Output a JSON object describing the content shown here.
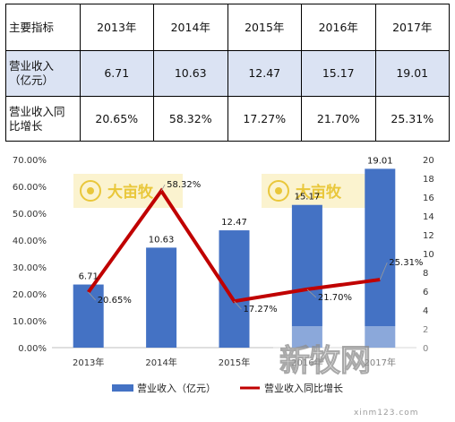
{
  "table": {
    "headers": [
      "主要指标",
      "2013年",
      "2014年",
      "2015年",
      "2016年",
      "2017年"
    ],
    "rows": [
      {
        "label": "营业收入\n（亿元）",
        "cells": [
          "6.71",
          "10.63",
          "12.47",
          "15.17",
          "19.01"
        ]
      },
      {
        "label": "营业收入同\n比增长",
        "cells": [
          "20.65%",
          "58.32%",
          "17.27%",
          "21.70%",
          "25.31%"
        ]
      }
    ]
  },
  "chart_data": {
    "type": "bar",
    "categories": [
      "2013年",
      "2014年",
      "2015年",
      "2016年",
      "2017年"
    ],
    "series": [
      {
        "name": "营业收入（亿元）",
        "type": "bar",
        "axis": "right",
        "values": [
          6.71,
          10.63,
          12.47,
          15.17,
          19.01
        ],
        "labels": [
          "6.71",
          "10.63",
          "12.47",
          "15.17",
          "19.01"
        ],
        "color": "#4472c4"
      },
      {
        "name": "营业收入同比增长",
        "type": "line",
        "axis": "left",
        "values": [
          20.65,
          58.32,
          17.27,
          21.7,
          25.31
        ],
        "labels": [
          "20.65%",
          "58.32%",
          "17.27%",
          "21.70%",
          "25.31%"
        ],
        "color": "#c00000"
      }
    ],
    "y_left": {
      "min": 0,
      "max": 70,
      "ticks": [
        "0.00%",
        "10.00%",
        "20.00%",
        "30.00%",
        "40.00%",
        "50.00%",
        "60.00%",
        "70.00%"
      ]
    },
    "y_right": {
      "min": 0,
      "max": 20,
      "ticks": [
        "0",
        "2",
        "4",
        "6",
        "8",
        "10",
        "12",
        "14",
        "16",
        "18",
        "20"
      ]
    },
    "legend_position": "bottom",
    "grid": false
  },
  "watermarks": {
    "brand": "大亩牧",
    "site": "新牧网",
    "url": "xinm123.com"
  }
}
